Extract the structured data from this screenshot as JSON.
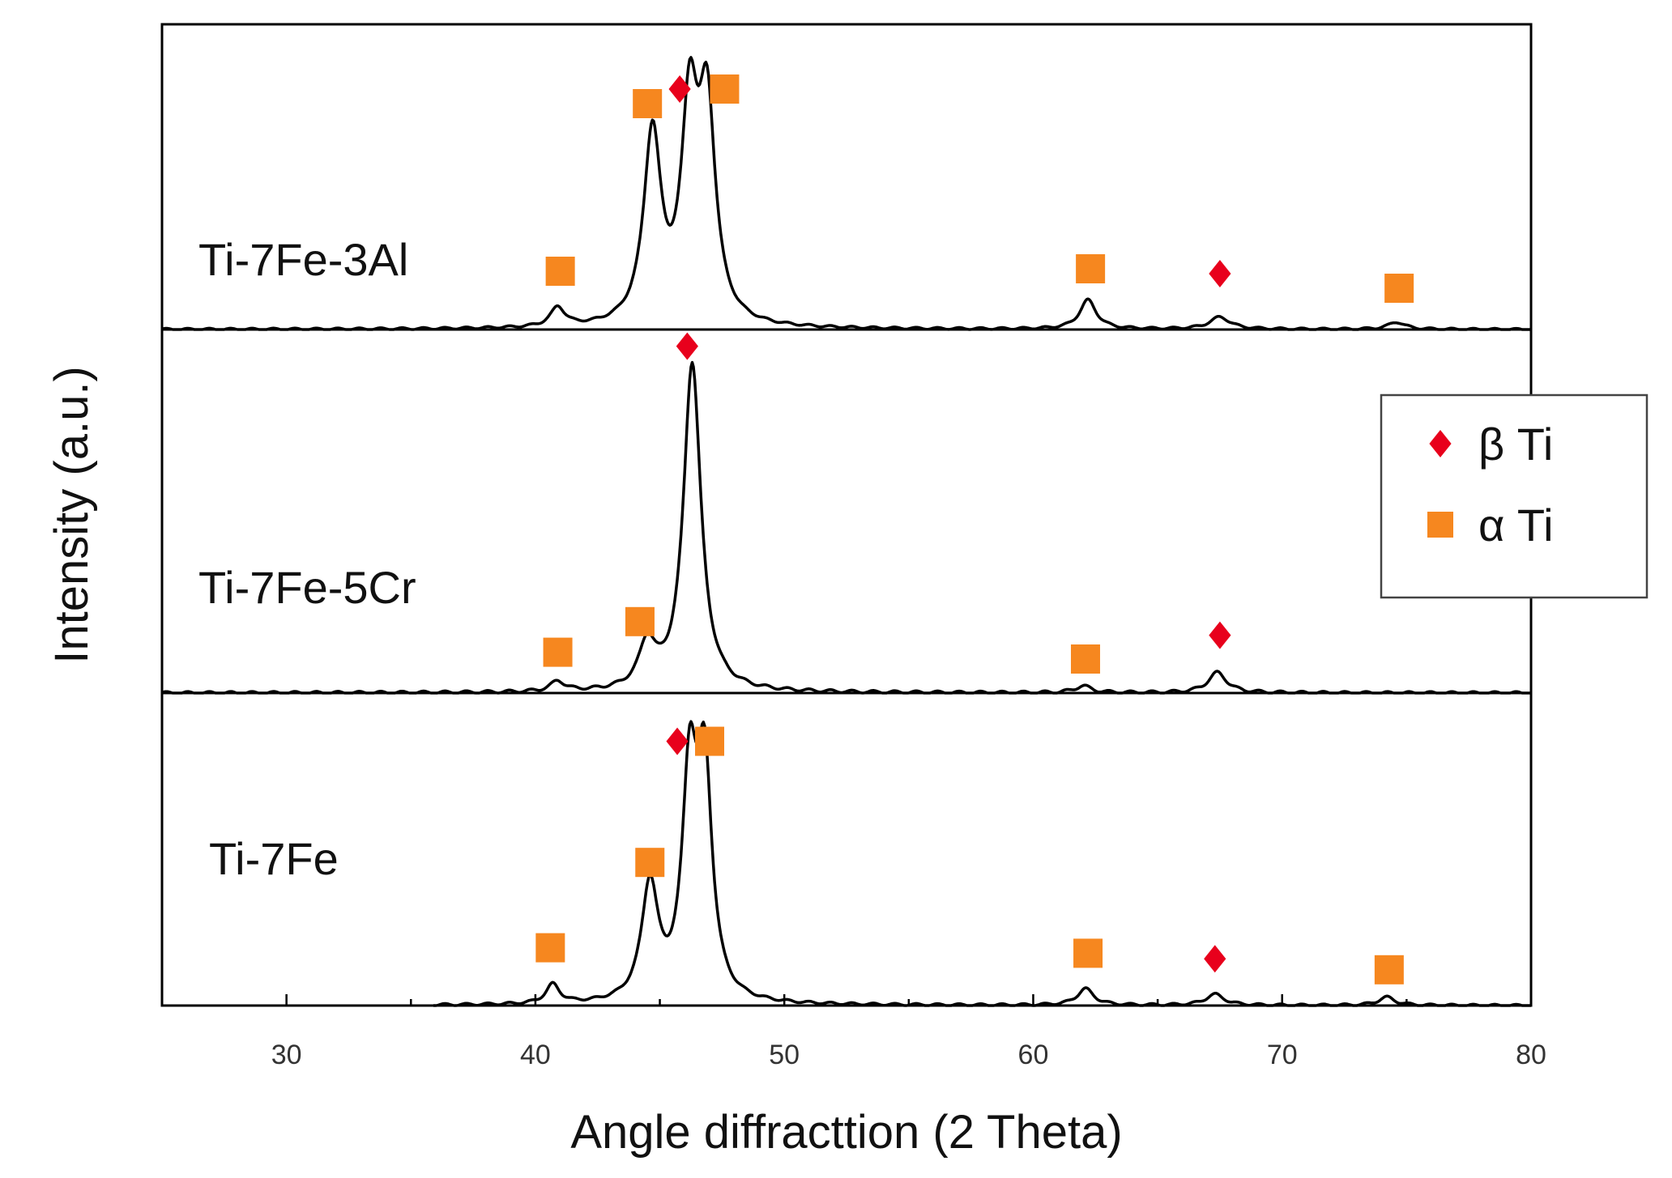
{
  "chart_data": {
    "type": "line",
    "title": "",
    "xlabel": "Angle diffracttion (2 Theta)",
    "ylabel": "Intensity (a.u.)",
    "xlim": [
      25,
      80
    ],
    "xticks": [
      30,
      40,
      50,
      60,
      70,
      80
    ],
    "grid": false,
    "legend": {
      "placement": "right",
      "entries": [
        {
          "name": "β Ti",
          "marker": "diamond",
          "color": "#e8001c"
        },
        {
          "name": "α Ti",
          "marker": "square",
          "color": "#f6871f"
        }
      ]
    },
    "series": [
      {
        "name": "Ti-7Fe-3Al",
        "x_range": [
          25,
          80
        ],
        "peaks": [
          {
            "x": 40.9,
            "height": 0.08,
            "width": 0.35
          },
          {
            "x": 44.7,
            "height": 0.78,
            "width": 0.42
          },
          {
            "x": 46.2,
            "height": 0.85,
            "width": 0.4
          },
          {
            "x": 46.9,
            "height": 0.85,
            "width": 0.4
          },
          {
            "x": 62.2,
            "height": 0.12,
            "width": 0.4
          },
          {
            "x": 67.5,
            "height": 0.05,
            "width": 0.5
          },
          {
            "x": 74.6,
            "height": 0.03,
            "width": 0.4
          }
        ],
        "markers": [
          {
            "phase": "alpha",
            "x": 41.0,
            "y": 0.24
          },
          {
            "phase": "alpha",
            "x": 44.5,
            "y": 0.93
          },
          {
            "phase": "beta",
            "x": 45.8,
            "y": 0.99
          },
          {
            "phase": "alpha",
            "x": 47.6,
            "y": 0.99
          },
          {
            "phase": "alpha",
            "x": 62.3,
            "y": 0.25
          },
          {
            "phase": "beta",
            "x": 67.5,
            "y": 0.23
          },
          {
            "phase": "alpha",
            "x": 74.7,
            "y": 0.17
          }
        ]
      },
      {
        "name": "Ti-7Fe-5Cr",
        "x_range": [
          25,
          80
        ],
        "peaks": [
          {
            "x": 40.9,
            "height": 0.03,
            "width": 0.35
          },
          {
            "x": 44.5,
            "height": 0.13,
            "width": 0.4
          },
          {
            "x": 46.3,
            "height": 0.97,
            "width": 0.42
          },
          {
            "x": 62.0,
            "height": 0.02,
            "width": 0.4
          },
          {
            "x": 67.4,
            "height": 0.06,
            "width": 0.45
          }
        ],
        "markers": [
          {
            "phase": "beta",
            "x": 46.1,
            "y": 1.02
          },
          {
            "phase": "alpha",
            "x": 40.9,
            "y": 0.12
          },
          {
            "phase": "alpha",
            "x": 44.2,
            "y": 0.21
          },
          {
            "phase": "alpha",
            "x": 62.1,
            "y": 0.1
          },
          {
            "phase": "beta",
            "x": 67.5,
            "y": 0.17
          }
        ]
      },
      {
        "name": "Ti-7Fe",
        "x_range": [
          35.9,
          80
        ],
        "peaks": [
          {
            "x": 40.7,
            "height": 0.07,
            "width": 0.33
          },
          {
            "x": 44.6,
            "height": 0.42,
            "width": 0.4
          },
          {
            "x": 46.2,
            "height": 0.79,
            "width": 0.36
          },
          {
            "x": 46.8,
            "height": 0.79,
            "width": 0.36
          },
          {
            "x": 62.1,
            "height": 0.06,
            "width": 0.4
          },
          {
            "x": 67.3,
            "height": 0.04,
            "width": 0.45
          },
          {
            "x": 74.2,
            "height": 0.03,
            "width": 0.4
          }
        ],
        "markers": [
          {
            "phase": "beta",
            "x": 45.7,
            "y": 0.96
          },
          {
            "phase": "alpha",
            "x": 47.0,
            "y": 0.96
          },
          {
            "phase": "alpha",
            "x": 44.6,
            "y": 0.52
          },
          {
            "phase": "alpha",
            "x": 40.6,
            "y": 0.21
          },
          {
            "phase": "alpha",
            "x": 62.2,
            "y": 0.19
          },
          {
            "phase": "beta",
            "x": 67.3,
            "y": 0.17
          },
          {
            "phase": "alpha",
            "x": 74.3,
            "y": 0.13
          }
        ]
      }
    ]
  }
}
